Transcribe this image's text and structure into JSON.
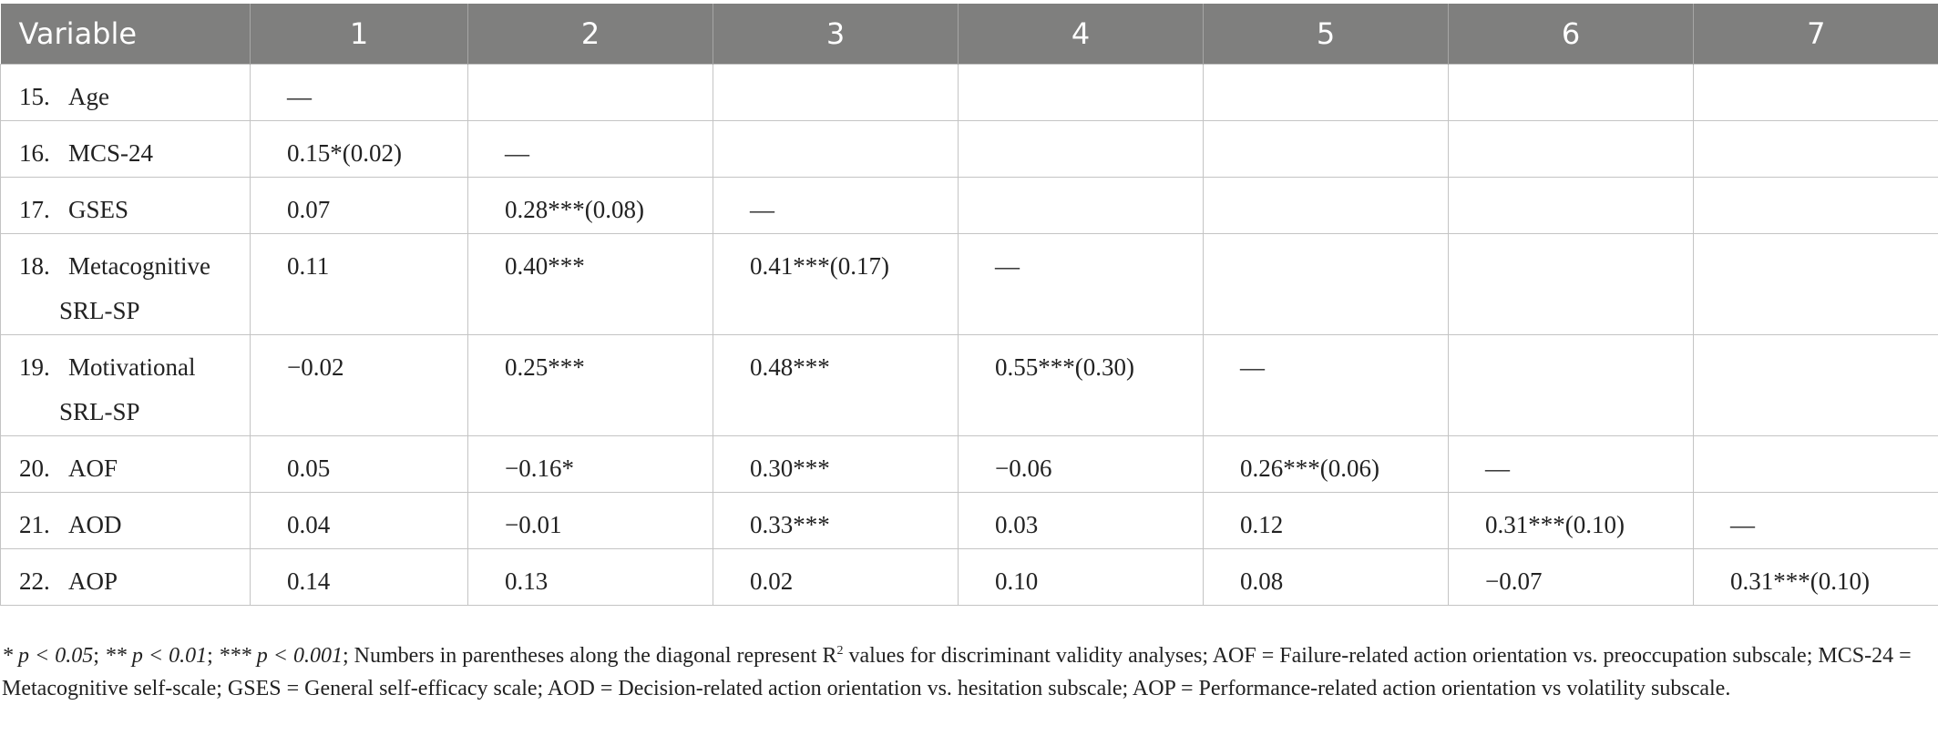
{
  "table": {
    "columns": [
      "Variable",
      "1",
      "2",
      "3",
      "4",
      "5",
      "6",
      "7"
    ],
    "rows": [
      {
        "num": "15.",
        "label": [
          "Age"
        ],
        "cells": [
          "—",
          "",
          "",
          "",
          "",
          "",
          ""
        ]
      },
      {
        "num": "16.",
        "label": [
          "MCS-24"
        ],
        "cells": [
          "0.15*(0.02)",
          "—",
          "",
          "",
          "",
          "",
          ""
        ]
      },
      {
        "num": "17.",
        "label": [
          "GSES"
        ],
        "cells": [
          "0.07",
          "0.28***(0.08)",
          "—",
          "",
          "",
          "",
          ""
        ]
      },
      {
        "num": "18.",
        "label": [
          "Metacognitive",
          "SRL-SP"
        ],
        "cells": [
          "0.11",
          "0.40***",
          "0.41***(0.17)",
          "—",
          "",
          "",
          ""
        ]
      },
      {
        "num": "19.",
        "label": [
          "Motivational",
          "SRL-SP"
        ],
        "cells": [
          "−0.02",
          "0.25***",
          "0.48***",
          "0.55***(0.30)",
          "—",
          "",
          ""
        ]
      },
      {
        "num": "20.",
        "label": [
          "AOF"
        ],
        "cells": [
          "0.05",
          "−0.16*",
          "0.30***",
          "−0.06",
          "0.26***(0.06)",
          "—",
          ""
        ]
      },
      {
        "num": "21.",
        "label": [
          "AOD"
        ],
        "cells": [
          "0.04",
          "−0.01",
          "0.33***",
          "0.03",
          "0.12",
          "0.31***(0.10)",
          "—"
        ]
      },
      {
        "num": "22.",
        "label": [
          "AOP"
        ],
        "cells": [
          "0.14",
          "0.13",
          "0.02",
          "0.10",
          "0.08",
          "−0.07",
          "0.31***(0.10)"
        ]
      }
    ]
  },
  "footnote": {
    "sig1": "* p < 0.05",
    "sep1": "; ",
    "sig2": "** p < 0.01",
    "sep2": "; ",
    "sig3": "*** p < 0.001",
    "text_a": "; Numbers in parentheses along the diagonal represent R",
    "sup": "2",
    "text_b": " values for discriminant validity analyses; AOF = Failure-related action orientation vs. preoccupation subscale; MCS-24 = Metacognitive self-scale; GSES = General self-efficacy scale; AOD = Decision-related action orientation vs. hesitation subscale; AOP = Performance-related action orientation vs volatility subscale."
  }
}
